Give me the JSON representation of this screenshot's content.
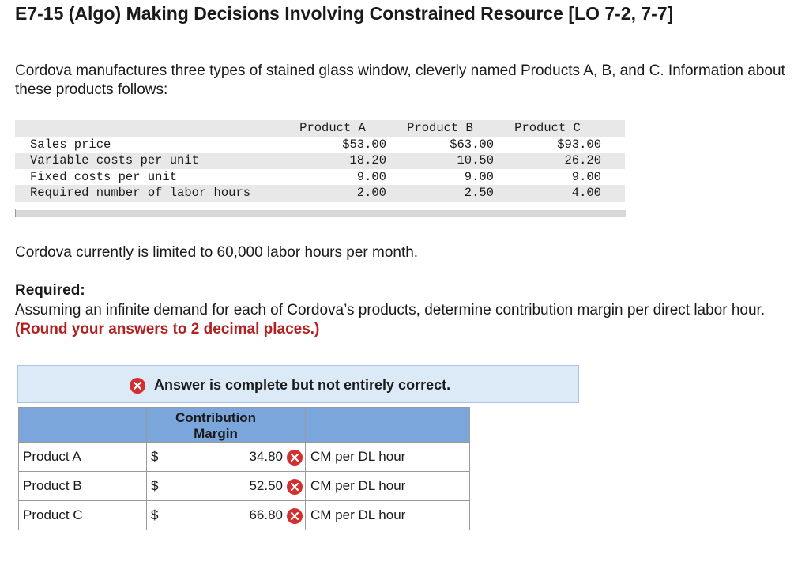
{
  "title": "E7-15 (Algo) Making Decisions Involving Constrained Resource [LO 7-2, 7-7]",
  "intro": "Cordova manufactures three types of stained glass window, cleverly named Products A, B, and C. Information about these products follows:",
  "info_table": {
    "headers": [
      "Product A",
      "Product B",
      "Product C"
    ],
    "rows": [
      {
        "label": "Sales price",
        "a": "$53.00",
        "b": "$63.00",
        "c": "$93.00"
      },
      {
        "label": "Variable costs per unit",
        "a": "18.20",
        "b": "10.50",
        "c": "26.20"
      },
      {
        "label": "Fixed costs per unit",
        "a": "9.00",
        "b": "9.00",
        "c": "9.00"
      },
      {
        "label": "Required number of labor hours",
        "a": "2.00",
        "b": "2.50",
        "c": "4.00"
      }
    ]
  },
  "limit_text": "Cordova currently is limited to 60,000 labor hours per month.",
  "required": {
    "heading": "Required:",
    "text": "Assuming an infinite demand for each of Cordova’s products, determine contribution margin per direct labor hour.",
    "note": "(Round your answers to 2 decimal places.)"
  },
  "banner": {
    "message": "Answer is complete but not entirely correct."
  },
  "answer_table": {
    "header": "Contribution Margin",
    "rows": [
      {
        "label": "Product A",
        "currency": "$",
        "value": "34.80",
        "unit": "CM per DL hour"
      },
      {
        "label": "Product B",
        "currency": "$",
        "value": "52.50",
        "unit": "CM per DL hour"
      },
      {
        "label": "Product C",
        "currency": "$",
        "value": "66.80",
        "unit": "CM per DL hour"
      }
    ]
  },
  "colors": {
    "incorrect": "#d32f2f",
    "header_blue": "#7aa6dc",
    "banner_bg": "#dce9f7",
    "note_red": "#b32020"
  },
  "icons": {
    "incorrect": "x-circle-icon"
  }
}
